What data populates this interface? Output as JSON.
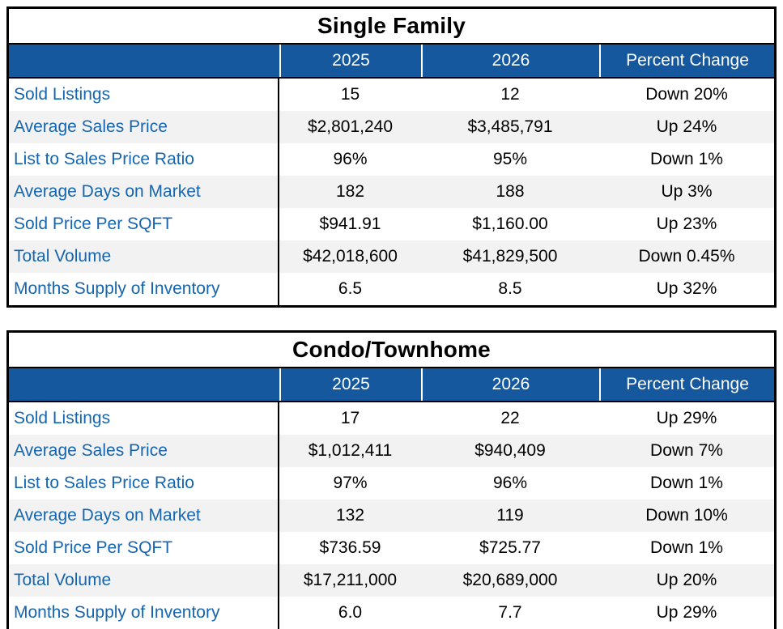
{
  "colors": {
    "header_bg": "#15589D",
    "header_text": "#ffffff",
    "label_text": "#1565B0",
    "value_text": "#000000",
    "stripe_bg": "#F2F2F2",
    "border": "#000000",
    "title_text": "#000000"
  },
  "tables": [
    {
      "title": "Single Family",
      "columns": [
        "2025",
        "2026",
        "Percent Change"
      ],
      "rows": [
        {
          "label": "Sold Listings",
          "y2025": "15",
          "y2026": "12",
          "change": "Down 20%"
        },
        {
          "label": "Average Sales Price",
          "y2025": "$2,801,240",
          "y2026": "$3,485,791",
          "change": "Up 24%"
        },
        {
          "label": "List to Sales Price Ratio",
          "y2025": "96%",
          "y2026": "95%",
          "change": "Down 1%"
        },
        {
          "label": "Average Days on Market",
          "y2025": "182",
          "y2026": "188",
          "change": "Up 3%"
        },
        {
          "label": "Sold Price Per SQFT",
          "y2025": "$941.91",
          "y2026": "$1,160.00",
          "change": "Up 23%"
        },
        {
          "label": "Total Volume",
          "y2025": "$42,018,600",
          "y2026": "$41,829,500",
          "change": "Down 0.45%"
        },
        {
          "label": "Months Supply of Inventory",
          "y2025": "6.5",
          "y2026": "8.5",
          "change": "Up 32%"
        }
      ]
    },
    {
      "title": "Condo/Townhome",
      "columns": [
        "2025",
        "2026",
        "Percent Change"
      ],
      "rows": [
        {
          "label": "Sold Listings",
          "y2025": "17",
          "y2026": "22",
          "change": "Up 29%"
        },
        {
          "label": "Average Sales Price",
          "y2025": "$1,012,411",
          "y2026": "$940,409",
          "change": "Down 7%"
        },
        {
          "label": "List to Sales Price Ratio",
          "y2025": "97%",
          "y2026": "96%",
          "change": "Down 1%"
        },
        {
          "label": "Average Days on Market",
          "y2025": "132",
          "y2026": "119",
          "change": "Down 10%"
        },
        {
          "label": "Sold Price Per SQFT",
          "y2025": "$736.59",
          "y2026": "$725.77",
          "change": "Down 1%"
        },
        {
          "label": "Total Volume",
          "y2025": "$17,211,000",
          "y2026": "$20,689,000",
          "change": "Up 20%"
        },
        {
          "label": "Months Supply of Inventory",
          "y2025": "6.0",
          "y2026": "7.7",
          "change": "Up 29%"
        }
      ]
    }
  ],
  "chart_data": [
    {
      "type": "table",
      "title": "Single Family",
      "columns": [
        "",
        "2025",
        "2026",
        "Percent Change"
      ],
      "rows": [
        [
          "Sold Listings",
          "15",
          "12",
          "Down 20%"
        ],
        [
          "Average Sales Price",
          "$2,801,240",
          "$3,485,791",
          "Up 24%"
        ],
        [
          "List to Sales Price Ratio",
          "96%",
          "95%",
          "Down 1%"
        ],
        [
          "Average Days on Market",
          "182",
          "188",
          "Up 3%"
        ],
        [
          "Sold Price Per SQFT",
          "$941.91",
          "$1,160.00",
          "Up 23%"
        ],
        [
          "Total Volume",
          "$42,018,600",
          "$41,829,500",
          "Down 0.45%"
        ],
        [
          "Months Supply of Inventory",
          "6.5",
          "8.5",
          "Up 32%"
        ]
      ]
    },
    {
      "type": "table",
      "title": "Condo/Townhome",
      "columns": [
        "",
        "2025",
        "2026",
        "Percent Change"
      ],
      "rows": [
        [
          "Sold Listings",
          "17",
          "22",
          "Up 29%"
        ],
        [
          "Average Sales Price",
          "$1,012,411",
          "$940,409",
          "Down 7%"
        ],
        [
          "List to Sales Price Ratio",
          "97%",
          "96%",
          "Down 1%"
        ],
        [
          "Average Days on Market",
          "132",
          "119",
          "Down 10%"
        ],
        [
          "Sold Price Per SQFT",
          "$736.59",
          "$725.77",
          "Down 1%"
        ],
        [
          "Total Volume",
          "$17,211,000",
          "$20,689,000",
          "Up 20%"
        ],
        [
          "Months Supply of Inventory",
          "6.0",
          "7.7",
          "Up 29%"
        ]
      ]
    }
  ]
}
